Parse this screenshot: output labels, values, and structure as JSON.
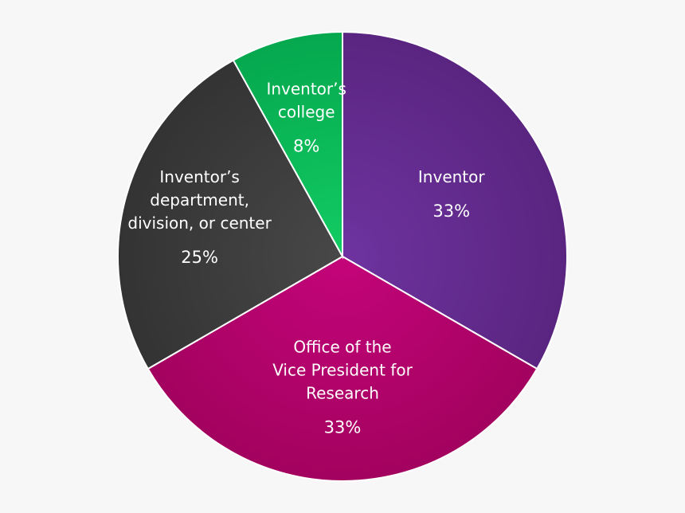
{
  "chart_data": {
    "type": "pie",
    "title": "",
    "slices": [
      {
        "label": [
          "Inventor"
        ],
        "value": 33,
        "display": "33%",
        "color": "#5a2580",
        "color_light": "#6e33a0"
      },
      {
        "label": [
          "Office of the",
          "Vice President for",
          "Research"
        ],
        "value": 33,
        "display": "33%",
        "color": "#a3025f",
        "color_light": "#c4047a"
      },
      {
        "label": [
          "Inventor’s",
          "department,",
          "division, or center"
        ],
        "value": 25,
        "display": "25%",
        "color": "#333333",
        "color_light": "#484848"
      },
      {
        "label": [
          "Inventor’s",
          "college"
        ],
        "value": 8,
        "display": "8%",
        "color": "#05a84e",
        "color_light": "#12cc63"
      }
    ]
  }
}
